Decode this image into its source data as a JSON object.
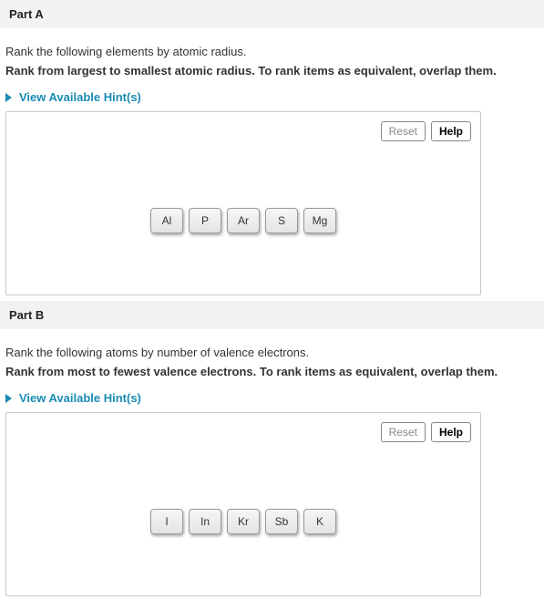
{
  "partA": {
    "title": "Part A",
    "instruction": "Rank the following elements by atomic radius.",
    "instruction_bold": "Rank from largest to smallest atomic radius. To rank items as equivalent, overlap them.",
    "hints_label": "View Available Hint(s)",
    "reset_label": "Reset",
    "help_label": "Help",
    "tiles": [
      "Al",
      "P",
      "Ar",
      "S",
      "Mg"
    ]
  },
  "partB": {
    "title": "Part B",
    "instruction": "Rank the following atoms by number of valence electrons.",
    "instruction_bold": "Rank from most to fewest valence electrons. To rank items as equivalent, overlap them.",
    "hints_label": "View Available Hint(s)",
    "reset_label": "Reset",
    "help_label": "Help",
    "tiles": [
      "I",
      "In",
      "Kr",
      "Sb",
      "K"
    ]
  }
}
